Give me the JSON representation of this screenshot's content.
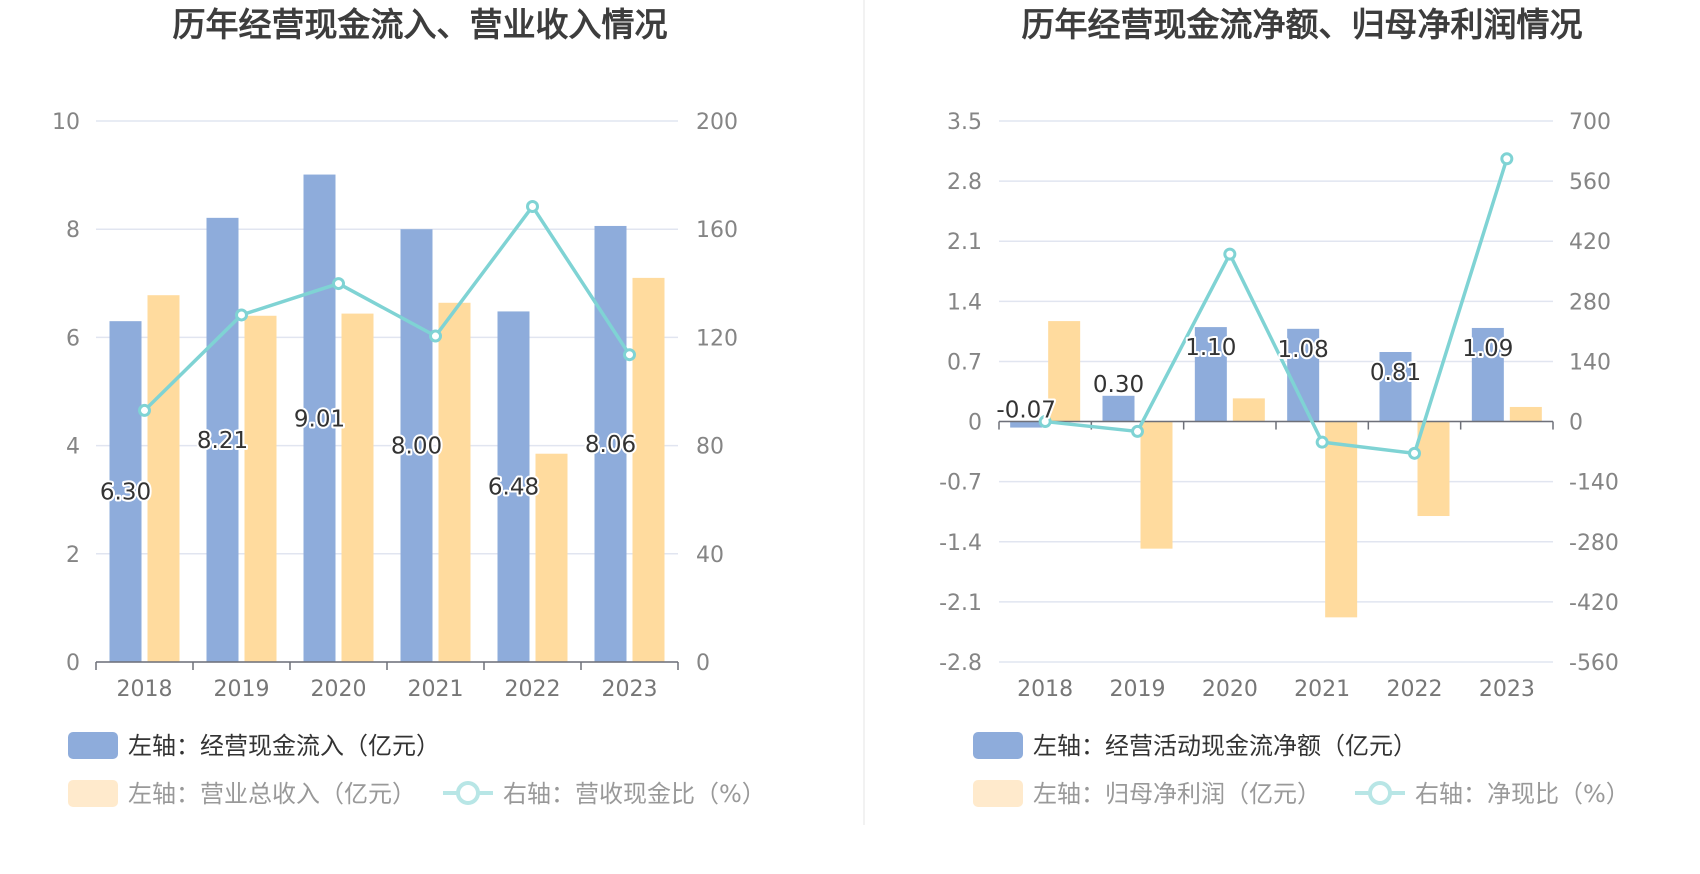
{
  "colors": {
    "bar_left": "#8eacdb",
    "bar_right": "#ffdb9e",
    "line": "#7fd3d4"
  },
  "chart_data": [
    {
      "type": "bar",
      "title": "历年经营现金流入、营业收入情况",
      "categories": [
        "2018",
        "2019",
        "2020",
        "2021",
        "2022",
        "2023"
      ],
      "left_axis": {
        "min": 0,
        "max": 10,
        "ticks": [
          "0",
          "2",
          "4",
          "6",
          "8",
          "10"
        ]
      },
      "right_axis": {
        "min": 0,
        "max": 200,
        "ticks": [
          "0",
          "40",
          "80",
          "120",
          "160",
          "200"
        ]
      },
      "series": [
        {
          "name": "经营现金流入",
          "legend": "左轴：经营现金流入（亿元）",
          "type": "bar",
          "axis": "left",
          "values": [
            6.3,
            8.21,
            9.01,
            8.0,
            6.48,
            8.06
          ],
          "labels": [
            "6.30",
            "8.21",
            "9.01",
            "8.00",
            "6.48",
            "8.06"
          ]
        },
        {
          "name": "营业总收入",
          "legend": "左轴：营业总收入（亿元）",
          "type": "bar",
          "axis": "left",
          "values": [
            6.78,
            6.4,
            6.44,
            6.64,
            3.85,
            7.1
          ]
        },
        {
          "name": "营收现金比",
          "legend": "右轴：营收现金比（%）",
          "type": "line",
          "axis": "right",
          "values": [
            93.0,
            128.3,
            139.9,
            120.5,
            168.4,
            113.6
          ]
        }
      ]
    },
    {
      "type": "bar",
      "title": "历年经营现金流净额、归母净利润情况",
      "categories": [
        "2018",
        "2019",
        "2020",
        "2021",
        "2022",
        "2023"
      ],
      "left_axis": {
        "min": -2.8,
        "max": 3.5,
        "ticks": [
          "-2.8",
          "-2.1",
          "-1.4",
          "-0.7",
          "0",
          "0.7",
          "1.4",
          "2.1",
          "2.8",
          "3.5"
        ]
      },
      "right_axis": {
        "min": -560,
        "max": 700,
        "ticks": [
          "-560",
          "-420",
          "-280",
          "-140",
          "0",
          "140",
          "280",
          "420",
          "560",
          "700"
        ]
      },
      "series": [
        {
          "name": "经营活动现金流净额",
          "legend": "左轴：经营活动现金流净额（亿元）",
          "type": "bar",
          "axis": "left",
          "values": [
            -0.07,
            0.3,
            1.1,
            1.08,
            0.81,
            1.09
          ],
          "labels": [
            "-0.07",
            "0.30",
            "1.10",
            "1.08",
            "0.81",
            "1.09"
          ]
        },
        {
          "name": "归母净利润",
          "legend": "左轴：归母净利润（亿元）",
          "type": "bar",
          "axis": "left",
          "values": [
            1.17,
            -1.48,
            0.27,
            -2.28,
            -1.1,
            0.17
          ]
        },
        {
          "name": "净现比",
          "legend": "右轴：净现比（%）",
          "type": "line",
          "axis": "right",
          "values": [
            0,
            -23,
            390,
            -48,
            -74,
            612
          ]
        }
      ]
    }
  ]
}
